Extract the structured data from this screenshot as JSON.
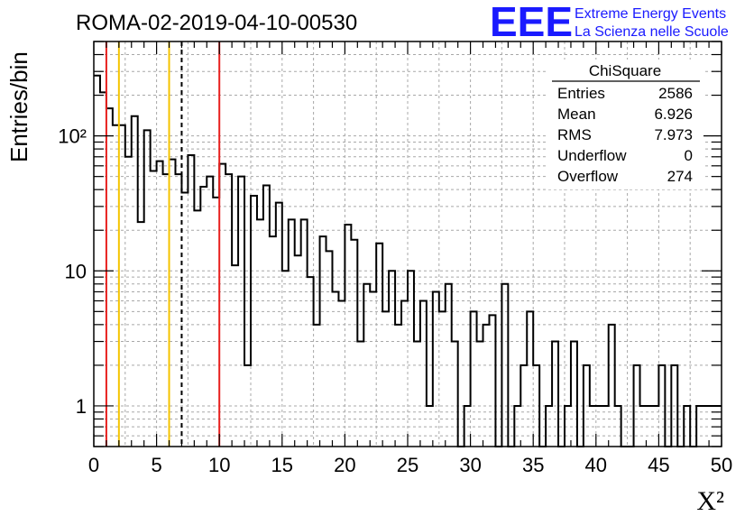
{
  "chart_data": {
    "type": "histogram",
    "title": "ROMA-02-2019-04-10-00530",
    "xlabel": "X²",
    "ylabel": "Entries/bin",
    "xlim": [
      0,
      50
    ],
    "ylim": [
      0.5,
      500
    ],
    "y_scale": "log",
    "grid": true,
    "bin_width": 0.5,
    "x_ticks": [
      "0",
      "5",
      "10",
      "15",
      "20",
      "25",
      "30",
      "35",
      "40",
      "45",
      "50"
    ],
    "y_ticks": [
      {
        "value": 1,
        "label": "1"
      },
      {
        "value": 10,
        "label": "10"
      },
      {
        "value": 100,
        "label": "10²"
      }
    ],
    "values": [
      280,
      210,
      160,
      120,
      120,
      70,
      140,
      23,
      110,
      55,
      65,
      52,
      67,
      52,
      38,
      72,
      28,
      42,
      50,
      35,
      62,
      52,
      11,
      50,
      2,
      36,
      24,
      43,
      18,
      32,
      10,
      24,
      13,
      24,
      9,
      4,
      18,
      14,
      7,
      6,
      22,
      17,
      3,
      8,
      7,
      16,
      5,
      10,
      4,
      6,
      10,
      3,
      6,
      1,
      7,
      5,
      8,
      3,
      0.5,
      1,
      5,
      3,
      4,
      4.7,
      0.5,
      8,
      0.5,
      1,
      2,
      5,
      2,
      0.5,
      1,
      3,
      0.5,
      1,
      3,
      0.5,
      2,
      1,
      1,
      1,
      4,
      1,
      0.5,
      0.5,
      2,
      1,
      1,
      1,
      2,
      0.5,
      2,
      0.5,
      1,
      0.5,
      1,
      1,
      1,
      1
    ],
    "vertical_lines": [
      {
        "x": 1,
        "color": "#e8201e",
        "style": "solid"
      },
      {
        "x": 2,
        "color": "#f5c400",
        "style": "solid"
      },
      {
        "x": 6,
        "color": "#f5c400",
        "style": "solid"
      },
      {
        "x": 7,
        "color": "#000000",
        "style": "dashed"
      },
      {
        "x": 10,
        "color": "#e8201e",
        "style": "solid"
      }
    ],
    "stats_box": {
      "name": "ChiSquare",
      "entries": [
        {
          "label": "Entries",
          "value": "2586"
        },
        {
          "label": "Mean",
          "value": "6.926"
        },
        {
          "label": "RMS",
          "value": "7.973"
        },
        {
          "label": "Underflow",
          "value": "0"
        },
        {
          "label": "Overflow",
          "value": "274"
        }
      ]
    }
  },
  "logo": {
    "mark": "EEE",
    "line1": "Extreme Energy Events",
    "line2": "La Scienza nelle Scuole",
    "color": "#1a1aff"
  }
}
